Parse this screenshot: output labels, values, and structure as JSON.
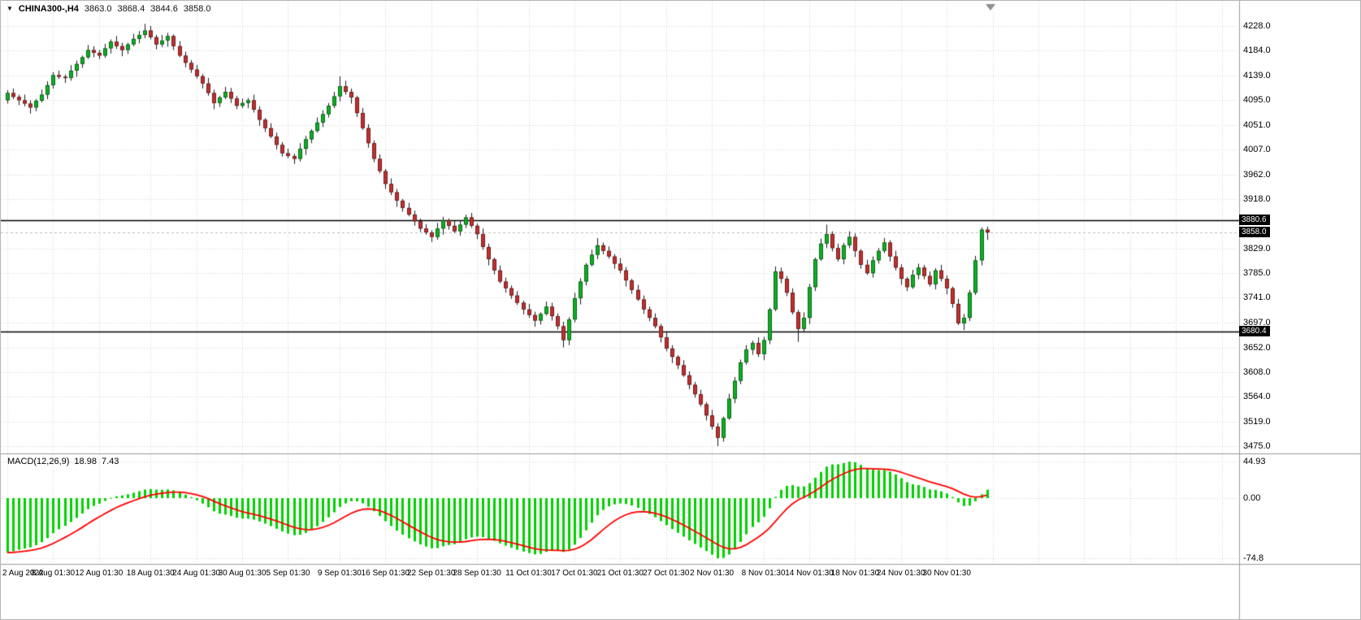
{
  "header": {
    "dropdown_icon": "▼",
    "symbol": "CHINA300-,H4",
    "open": "3863.0",
    "high": "3868.4",
    "low": "3844.6",
    "close": "3858.0"
  },
  "macd_panel": {
    "label": "MACD(12,26,9)",
    "value_main": "18.98",
    "value_signal": "7.43",
    "scale_labels": [
      "44.93",
      "0.00",
      "-74.8"
    ]
  },
  "colors": {
    "background": "#ffffff",
    "grid": "#d6d6d6",
    "bull": "#0fae26",
    "bear": "#bf3030",
    "wick": "#1a1a1a",
    "body_outline": "rgba(0,0,0,0.5)",
    "hline": "#000000",
    "bid_line": "#bdbdbd",
    "macd_hist": "#00d000",
    "macd_signal": "#ff0000",
    "tag_bg": "#000000",
    "tag_text": "#ffffff",
    "axis_border": "#9a9a9a",
    "shift_marker": "#8f8f8f",
    "text": "#000000"
  },
  "chart_data": {
    "type": "candlestick",
    "symbol": "CHINA300-,H4",
    "timeframe": "H4",
    "title": "CHINA300-,H4  3863.0 3868.4 3844.6 3858.0",
    "ylim": [
      3475.0,
      4232.0
    ],
    "price_ticks": [
      "4228.0",
      "4184.0",
      "4139.0",
      "4095.0",
      "4051.0",
      "4007.0",
      "3962.0",
      "3918.0",
      "3829.0",
      "3785.0",
      "3741.0",
      "3697.0",
      "3652.0",
      "3608.0",
      "3564.0",
      "3519.0",
      "3475.0"
    ],
    "price_tags": [
      {
        "text": "3880.6",
        "price": 3880.6,
        "kind": "horizontal-line"
      },
      {
        "text": "3858.0",
        "price": 3858.0,
        "kind": "bid-price"
      },
      {
        "text": "3680.4",
        "price": 3680.4,
        "kind": "horizontal-line"
      }
    ],
    "hlines": [
      3880.6,
      3680.4
    ],
    "bid_price": 3858.0,
    "time_labels": [
      {
        "i": 0,
        "t": "2 Aug 2022"
      },
      {
        "i": 8,
        "t": "8 Aug 01:30"
      },
      {
        "i": 16,
        "t": "12 Aug 01:30"
      },
      {
        "i": 25,
        "t": "18 Aug 01:30"
      },
      {
        "i": 33,
        "t": "24 Aug 01:30"
      },
      {
        "i": 41,
        "t": "30 Aug 01:30"
      },
      {
        "i": 49,
        "t": "5 Sep 01:30"
      },
      {
        "i": 58,
        "t": "9 Sep 01:30"
      },
      {
        "i": 66,
        "t": "16 Sep 01:30"
      },
      {
        "i": 74,
        "t": "22 Sep 01:30"
      },
      {
        "i": 82,
        "t": "28 Sep 01:30"
      },
      {
        "i": 91,
        "t": "11 Oct 01:30"
      },
      {
        "i": 99,
        "t": "17 Oct 01:30"
      },
      {
        "i": 107,
        "t": "21 Oct 01:30"
      },
      {
        "i": 115,
        "t": "27 Oct 01:30"
      },
      {
        "i": 123,
        "t": "2 Nov 01:30"
      },
      {
        "i": 132,
        "t": "8 Nov 01:30"
      },
      {
        "i": 140,
        "t": "14 Nov 01:30"
      },
      {
        "i": 148,
        "t": "18 Nov 01:30"
      },
      {
        "i": 156,
        "t": "24 Nov 01:30"
      },
      {
        "i": 164,
        "t": "30 Nov 01:30"
      }
    ],
    "extra_grid_indices": [
      172,
      180,
      188,
      196,
      204,
      212
    ],
    "candles": [
      [
        4095,
        4113,
        4089,
        4108
      ],
      [
        4108,
        4116,
        4097,
        4101
      ],
      [
        4101,
        4105,
        4086,
        4095
      ],
      [
        4095,
        4105,
        4084,
        4089
      ],
      [
        4089,
        4095,
        4071,
        4082
      ],
      [
        4082,
        4097,
        4075,
        4094
      ],
      [
        4094,
        4114,
        4091,
        4105
      ],
      [
        4105,
        4129,
        4097,
        4122
      ],
      [
        4122,
        4145,
        4116,
        4140
      ],
      [
        4140,
        4148,
        4133,
        4137
      ],
      [
        4137,
        4141,
        4126,
        4135
      ],
      [
        4135,
        4158,
        4130,
        4148
      ],
      [
        4148,
        4166,
        4137,
        4160
      ],
      [
        4160,
        4175,
        4153,
        4172
      ],
      [
        4172,
        4194,
        4169,
        4185
      ],
      [
        4185,
        4192,
        4172,
        4180
      ],
      [
        4180,
        4185,
        4169,
        4175
      ],
      [
        4175,
        4196,
        4171,
        4188
      ],
      [
        4188,
        4204,
        4179,
        4200
      ],
      [
        4200,
        4210,
        4187,
        4192
      ],
      [
        4192,
        4198,
        4174,
        4185
      ],
      [
        4185,
        4198,
        4178,
        4195
      ],
      [
        4195,
        4214,
        4192,
        4205
      ],
      [
        4205,
        4219,
        4197,
        4212
      ],
      [
        4212,
        4232,
        4206,
        4220
      ],
      [
        4220,
        4228,
        4204,
        4208
      ],
      [
        4208,
        4212,
        4186,
        4195
      ],
      [
        4195,
        4212,
        4190,
        4202
      ],
      [
        4202,
        4216,
        4191,
        4210
      ],
      [
        4210,
        4213,
        4185,
        4192
      ],
      [
        4192,
        4201,
        4172,
        4175
      ],
      [
        4175,
        4182,
        4154,
        4162
      ],
      [
        4162,
        4167,
        4144,
        4150
      ],
      [
        4150,
        4158,
        4134,
        4138
      ],
      [
        4138,
        4142,
        4116,
        4125
      ],
      [
        4125,
        4135,
        4103,
        4108
      ],
      [
        4108,
        4114,
        4079,
        4090
      ],
      [
        4090,
        4103,
        4083,
        4100
      ],
      [
        4100,
        4119,
        4097,
        4110
      ],
      [
        4110,
        4117,
        4090,
        4098
      ],
      [
        4098,
        4103,
        4079,
        4085
      ],
      [
        4085,
        4098,
        4081,
        4090
      ],
      [
        4090,
        4099,
        4081,
        4095
      ],
      [
        4095,
        4105,
        4073,
        4078
      ],
      [
        4078,
        4084,
        4049,
        4060
      ],
      [
        4060,
        4063,
        4038,
        4045
      ],
      [
        4045,
        4054,
        4027,
        4030
      ],
      [
        4030,
        4037,
        4007,
        4015
      ],
      [
        4015,
        4020,
        3994,
        4000
      ],
      [
        4000,
        4008,
        3991,
        3995
      ],
      [
        3995,
        3999,
        3981,
        3990
      ],
      [
        3990,
        4018,
        3985,
        4008
      ],
      [
        4008,
        4031,
        3997,
        4025
      ],
      [
        4025,
        4043,
        4018,
        4040
      ],
      [
        4040,
        4064,
        4037,
        4055
      ],
      [
        4055,
        4077,
        4047,
        4070
      ],
      [
        4070,
        4090,
        4064,
        4085
      ],
      [
        4085,
        4110,
        4081,
        4102
      ],
      [
        4102,
        4138,
        4093,
        4120
      ],
      [
        4120,
        4130,
        4105,
        4110
      ],
      [
        4110,
        4116,
        4089,
        4100
      ],
      [
        4100,
        4103,
        4065,
        4072
      ],
      [
        4072,
        4081,
        4042,
        4045
      ],
      [
        4045,
        4052,
        4010,
        4018
      ],
      [
        4018,
        4023,
        3984,
        3990
      ],
      [
        3990,
        3998,
        3964,
        3968
      ],
      [
        3968,
        3972,
        3936,
        3945
      ],
      [
        3945,
        3955,
        3925,
        3930
      ],
      [
        3930,
        3936,
        3904,
        3915
      ],
      [
        3915,
        3918,
        3895,
        3902
      ],
      [
        3902,
        3911,
        3887,
        3890
      ],
      [
        3890,
        3897,
        3870,
        3878
      ],
      [
        3878,
        3883,
        3859,
        3865
      ],
      [
        3865,
        3873,
        3854,
        3858
      ],
      [
        3858,
        3862,
        3841,
        3850
      ],
      [
        3850,
        3875,
        3845,
        3865
      ],
      [
        3865,
        3886,
        3854,
        3880
      ],
      [
        3880,
        3883,
        3863,
        3870
      ],
      [
        3870,
        3879,
        3857,
        3860
      ],
      [
        3860,
        3879,
        3852,
        3872
      ],
      [
        3872,
        3890,
        3866,
        3885
      ],
      [
        3885,
        3893,
        3866,
        3870
      ],
      [
        3870,
        3874,
        3846,
        3855
      ],
      [
        3855,
        3865,
        3827,
        3832
      ],
      [
        3832,
        3838,
        3799,
        3810
      ],
      [
        3810,
        3813,
        3783,
        3790
      ],
      [
        3790,
        3799,
        3767,
        3770
      ],
      [
        3770,
        3777,
        3750,
        3758
      ],
      [
        3758,
        3763,
        3739,
        3745
      ],
      [
        3745,
        3753,
        3728,
        3732
      ],
      [
        3732,
        3736,
        3711,
        3720
      ],
      [
        3720,
        3730,
        3705,
        3710
      ],
      [
        3710,
        3716,
        3689,
        3700
      ],
      [
        3700,
        3715,
        3693,
        3712
      ],
      [
        3712,
        3734,
        3709,
        3725
      ],
      [
        3725,
        3732,
        3700,
        3708
      ],
      [
        3708,
        3713,
        3684,
        3690
      ],
      [
        3690,
        3698,
        3652,
        3665
      ],
      [
        3665,
        3706,
        3656,
        3702
      ],
      [
        3702,
        3750,
        3697,
        3740
      ],
      [
        3740,
        3776,
        3729,
        3770
      ],
      [
        3770,
        3803,
        3763,
        3800
      ],
      [
        3800,
        3827,
        3797,
        3818
      ],
      [
        3818,
        3848,
        3810,
        3835
      ],
      [
        3835,
        3840,
        3819,
        3825
      ],
      [
        3825,
        3833,
        3811,
        3815
      ],
      [
        3815,
        3819,
        3793,
        3802
      ],
      [
        3802,
        3812,
        3785,
        3790
      ],
      [
        3790,
        3796,
        3761,
        3772
      ],
      [
        3772,
        3775,
        3748,
        3755
      ],
      [
        3755,
        3764,
        3735,
        3738
      ],
      [
        3738,
        3745,
        3712,
        3720
      ],
      [
        3720,
        3725,
        3699,
        3705
      ],
      [
        3705,
        3713,
        3686,
        3690
      ],
      [
        3690,
        3694,
        3661,
        3670
      ],
      [
        3670,
        3680,
        3645,
        3650
      ],
      [
        3650,
        3656,
        3624,
        3635
      ],
      [
        3635,
        3638,
        3613,
        3620
      ],
      [
        3620,
        3629,
        3599,
        3602
      ],
      [
        3602,
        3609,
        3577,
        3585
      ],
      [
        3585,
        3590,
        3562,
        3568
      ],
      [
        3568,
        3576,
        3546,
        3550
      ],
      [
        3550,
        3554,
        3521,
        3530
      ],
      [
        3530,
        3540,
        3505,
        3510
      ],
      [
        3510,
        3516,
        3475,
        3490
      ],
      [
        3490,
        3528,
        3483,
        3525
      ],
      [
        3525,
        3569,
        3522,
        3560
      ],
      [
        3560,
        3599,
        3552,
        3592
      ],
      [
        3592,
        3630,
        3586,
        3625
      ],
      [
        3625,
        3656,
        3621,
        3648
      ],
      [
        3648,
        3664,
        3639,
        3660
      ],
      [
        3660,
        3670,
        3635,
        3640
      ],
      [
        3640,
        3671,
        3629,
        3665
      ],
      [
        3665,
        3723,
        3658,
        3720
      ],
      [
        3720,
        3797,
        3717,
        3788
      ],
      [
        3788,
        3795,
        3767,
        3775
      ],
      [
        3775,
        3780,
        3744,
        3750
      ],
      [
        3750,
        3758,
        3711,
        3715
      ],
      [
        3715,
        3719,
        3662,
        3685
      ],
      [
        3685,
        3715,
        3680,
        3705
      ],
      [
        3705,
        3766,
        3694,
        3760
      ],
      [
        3760,
        3813,
        3753,
        3810
      ],
      [
        3810,
        3847,
        3807,
        3838
      ],
      [
        3838,
        3872,
        3830,
        3855
      ],
      [
        3855,
        3860,
        3824,
        3830
      ],
      [
        3830,
        3838,
        3806,
        3810
      ],
      [
        3810,
        3839,
        3801,
        3835
      ],
      [
        3835,
        3860,
        3830,
        3850
      ],
      [
        3850,
        3856,
        3814,
        3825
      ],
      [
        3825,
        3828,
        3793,
        3800
      ],
      [
        3800,
        3809,
        3782,
        3785
      ],
      [
        3785,
        3815,
        3777,
        3808
      ],
      [
        3808,
        3830,
        3802,
        3825
      ],
      [
        3825,
        3848,
        3821,
        3840
      ],
      [
        3840,
        3844,
        3806,
        3815
      ],
      [
        3815,
        3825,
        3790,
        3795
      ],
      [
        3795,
        3801,
        3764,
        3775
      ],
      [
        3775,
        3778,
        3753,
        3760
      ],
      [
        3760,
        3791,
        3757,
        3782
      ],
      [
        3782,
        3802,
        3774,
        3795
      ],
      [
        3795,
        3800,
        3774,
        3780
      ],
      [
        3780,
        3788,
        3761,
        3765
      ],
      [
        3765,
        3794,
        3756,
        3790
      ],
      [
        3790,
        3800,
        3770,
        3775
      ],
      [
        3775,
        3781,
        3747,
        3758
      ],
      [
        3758,
        3761,
        3723,
        3730
      ],
      [
        3730,
        3739,
        3692,
        3695
      ],
      [
        3695,
        3712,
        3683,
        3705
      ],
      [
        3705,
        3755,
        3699,
        3750
      ],
      [
        3750,
        3816,
        3746,
        3808
      ],
      [
        3808,
        3867,
        3799,
        3863
      ],
      [
        3863,
        3868.4,
        3844.6,
        3858
      ]
    ],
    "indicator": {
      "type": "macd",
      "params": [
        12,
        26,
        9
      ],
      "readout": [
        18.98,
        7.43
      ],
      "scale": {
        "max": 44.93,
        "zero": 0.0,
        "min": -74.8
      }
    }
  }
}
